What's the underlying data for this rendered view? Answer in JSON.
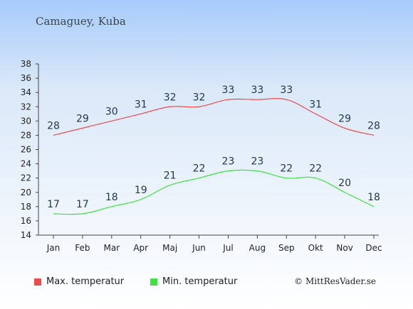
{
  "header": {
    "location": "Camaguey, Kuba"
  },
  "legend": [
    {
      "label": "Max. temperatur",
      "color": "#ee4b4b"
    },
    {
      "label": "Min. temperatur",
      "color": "#3ee43e"
    }
  ],
  "credit": "© MittResVader.se",
  "chart_data": {
    "type": "line",
    "categories": [
      "Jan",
      "Feb",
      "Mar",
      "Apr",
      "Maj",
      "Jun",
      "Jul",
      "Aug",
      "Sep",
      "Okt",
      "Nov",
      "Dec"
    ],
    "ylim": [
      14,
      38
    ],
    "yticks": [
      14,
      16,
      18,
      20,
      22,
      24,
      26,
      28,
      30,
      32,
      34,
      36,
      38
    ],
    "grid": false,
    "legend_position": "bottom-left",
    "series": [
      {
        "name": "Max. temperatur",
        "color": "#ee4b4b",
        "values": [
          28,
          29,
          30,
          31,
          32,
          32,
          33,
          33,
          33,
          31,
          29,
          28
        ]
      },
      {
        "name": "Min. temperatur",
        "color": "#3ee43e",
        "values": [
          17,
          17,
          18,
          19,
          21,
          22,
          23,
          23,
          22,
          22,
          20,
          18
        ]
      }
    ]
  }
}
